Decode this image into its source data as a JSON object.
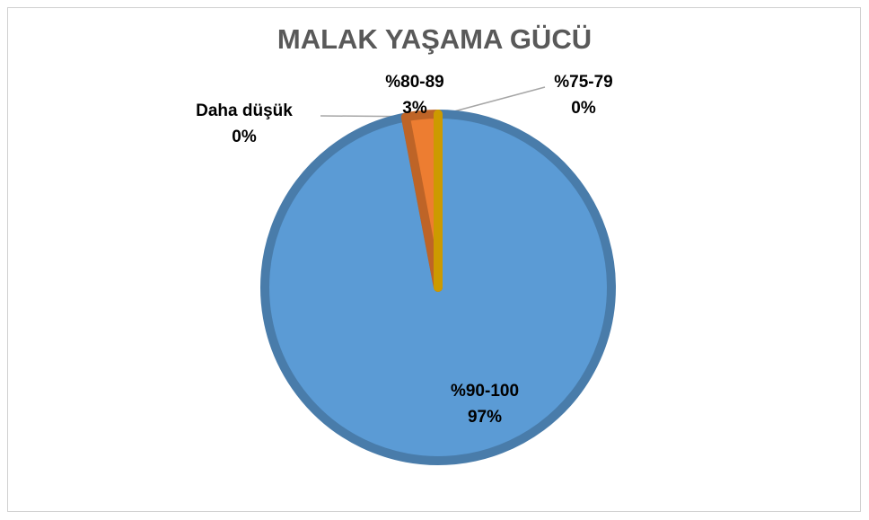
{
  "chart_data": {
    "type": "pie",
    "title": "MALAK YAŞAMA GÜCÜ",
    "categories": [
      "%90-100",
      "%80-89",
      "%75-79",
      "Daha düşük"
    ],
    "values": [
      97,
      3,
      0,
      0
    ],
    "value_labels": [
      "97%",
      "3%",
      "0%",
      "0%"
    ],
    "colors": [
      "#5b9bd5",
      "#ed7d31",
      "#a5a5a5",
      "#ffc000"
    ]
  }
}
